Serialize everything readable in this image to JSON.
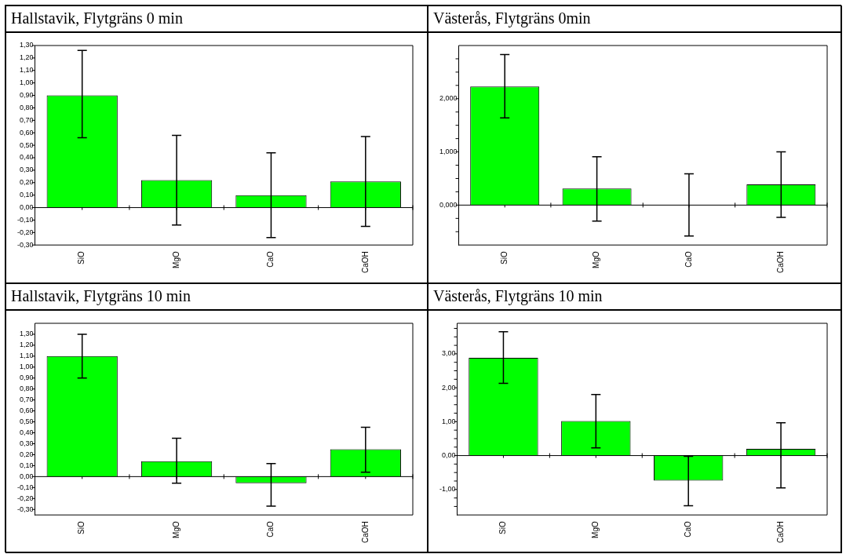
{
  "chart_data": [
    {
      "type": "bar",
      "title": "Hallstavik, Flytgräns 0 min",
      "categories": [
        "SiO",
        "MgO",
        "CaO",
        "CaOH"
      ],
      "color": "#00ff00",
      "values": [
        0.9,
        0.22,
        0.1,
        0.21
      ],
      "errors": [
        [
          0.56,
          1.26
        ],
        [
          -0.14,
          0.58
        ],
        [
          -0.24,
          0.44
        ],
        [
          -0.15,
          0.57
        ]
      ],
      "ylim": [
        -0.3,
        1.3
      ],
      "yticks": [
        {
          "value": -0.3,
          "label": "-0,30"
        },
        {
          "value": -0.2,
          "label": "-0,20"
        },
        {
          "value": -0.1,
          "label": "-0,10"
        },
        {
          "value": 0,
          "label": "0,00"
        },
        {
          "value": 0.1,
          "label": "0,10"
        },
        {
          "value": 0.2,
          "label": "0,20"
        },
        {
          "value": 0.3,
          "label": "0,30"
        },
        {
          "value": 0.4,
          "label": "0,40"
        },
        {
          "value": 0.5,
          "label": "0,50"
        },
        {
          "value": 0.6,
          "label": "0,60"
        },
        {
          "value": 0.7,
          "label": "0,70"
        },
        {
          "value": 0.8,
          "label": "0,80"
        },
        {
          "value": 0.9,
          "label": "0,90"
        },
        {
          "value": 1.0,
          "label": "1,00"
        },
        {
          "value": 1.1,
          "label": "1,10"
        },
        {
          "value": 1.2,
          "label": "1,20"
        },
        {
          "value": 1.3,
          "label": "1,30"
        }
      ],
      "ref_lines": [
        {
          "axis": "y",
          "value": 0
        }
      ],
      "grid": false,
      "legend": false
    },
    {
      "type": "bar",
      "title": "Västerås, Flytgräns 0min",
      "categories": [
        "SiO",
        "MgO",
        "CaO",
        "CaOH"
      ],
      "color": "#00ff00",
      "values": [
        2.23,
        0.31,
        0,
        0.39
      ],
      "errors": [
        [
          1.64,
          2.83
        ],
        [
          -0.3,
          0.91
        ],
        [
          -0.58,
          0.59
        ],
        [
          -0.23,
          1.0
        ]
      ],
      "ylim": [
        -0.75,
        3.0
      ],
      "yticks": [
        {
          "value": -0.5,
          "label": null
        },
        {
          "value": -0.25,
          "label": null
        },
        {
          "value": 0,
          "label": "0,000"
        },
        {
          "value": 0.25,
          "label": null
        },
        {
          "value": 0.5,
          "label": null
        },
        {
          "value": 0.75,
          "label": null
        },
        {
          "value": 1,
          "label": "1,000"
        },
        {
          "value": 1.25,
          "label": null
        },
        {
          "value": 1.5,
          "label": null
        },
        {
          "value": 1.75,
          "label": null
        },
        {
          "value": 2,
          "label": "2,000"
        },
        {
          "value": 2.25,
          "label": null
        },
        {
          "value": 2.5,
          "label": null
        },
        {
          "value": 2.75,
          "label": null
        }
      ],
      "ref_lines": [
        {
          "axis": "y",
          "value": 0
        }
      ],
      "grid": false,
      "legend": false
    },
    {
      "type": "bar",
      "title": "Hallstavik, Flytgräns 10 min",
      "categories": [
        "SiO",
        "MgO",
        "CaO",
        "CaOH"
      ],
      "color": "#00ff00",
      "values": [
        1.1,
        0.14,
        -0.06,
        0.25
      ],
      "errors": [
        [
          0.9,
          1.3
        ],
        [
          -0.06,
          0.35
        ],
        [
          -0.27,
          0.12
        ],
        [
          0.04,
          0.45
        ]
      ],
      "ylim": [
        -0.35,
        1.4
      ],
      "yticks": [
        {
          "value": -0.3,
          "label": "-0,30"
        },
        {
          "value": -0.2,
          "label": "-0,20"
        },
        {
          "value": -0.1,
          "label": "-0,10"
        },
        {
          "value": 0,
          "label": "0,00"
        },
        {
          "value": 0.1,
          "label": "0,10"
        },
        {
          "value": 0.2,
          "label": "0,20"
        },
        {
          "value": 0.3,
          "label": "0,30"
        },
        {
          "value": 0.4,
          "label": "0,40"
        },
        {
          "value": 0.5,
          "label": "0,50"
        },
        {
          "value": 0.6,
          "label": "0,60"
        },
        {
          "value": 0.7,
          "label": "0,70"
        },
        {
          "value": 0.8,
          "label": "0,80"
        },
        {
          "value": 0.9,
          "label": "0,90"
        },
        {
          "value": 1.0,
          "label": "1,00"
        },
        {
          "value": 1.1,
          "label": "1,10"
        },
        {
          "value": 1.2,
          "label": "1,20"
        },
        {
          "value": 1.3,
          "label": "1,30"
        }
      ],
      "ref_lines": [
        {
          "axis": "y",
          "value": 0
        }
      ],
      "grid": false,
      "legend": false
    },
    {
      "type": "bar",
      "title": "Västerås, Flytgräns 10 min",
      "categories": [
        "SiO",
        "MgO",
        "CaO",
        "CaOH"
      ],
      "color": "#00ff00",
      "values": [
        2.88,
        1.02,
        -0.74,
        0.2
      ],
      "errors": [
        [
          2.13,
          3.65
        ],
        [
          0.23,
          1.8
        ],
        [
          -1.48,
          -0.02
        ],
        [
          -0.95,
          0.97
        ]
      ],
      "ylim": [
        -1.75,
        3.9
      ],
      "yticks": [
        {
          "value": -1.5,
          "label": null
        },
        {
          "value": -1.25,
          "label": null
        },
        {
          "value": -1,
          "label": "-1,00"
        },
        {
          "value": -0.75,
          "label": null
        },
        {
          "value": -0.5,
          "label": null
        },
        {
          "value": -0.25,
          "label": null
        },
        {
          "value": 0,
          "label": "0,00"
        },
        {
          "value": 0.25,
          "label": null
        },
        {
          "value": 0.5,
          "label": null
        },
        {
          "value": 0.75,
          "label": null
        },
        {
          "value": 1,
          "label": "1,00"
        },
        {
          "value": 1.25,
          "label": null
        },
        {
          "value": 1.5,
          "label": null
        },
        {
          "value": 1.75,
          "label": null
        },
        {
          "value": 2,
          "label": "2,00"
        },
        {
          "value": 2.25,
          "label": null
        },
        {
          "value": 2.5,
          "label": null
        },
        {
          "value": 2.75,
          "label": null
        },
        {
          "value": 3,
          "label": "3,00"
        },
        {
          "value": 3.25,
          "label": null
        },
        {
          "value": 3.5,
          "label": null
        },
        {
          "value": 3.75,
          "label": null
        }
      ],
      "ref_lines": [
        {
          "axis": "y",
          "value": 0
        }
      ],
      "grid": false,
      "legend": false
    }
  ]
}
